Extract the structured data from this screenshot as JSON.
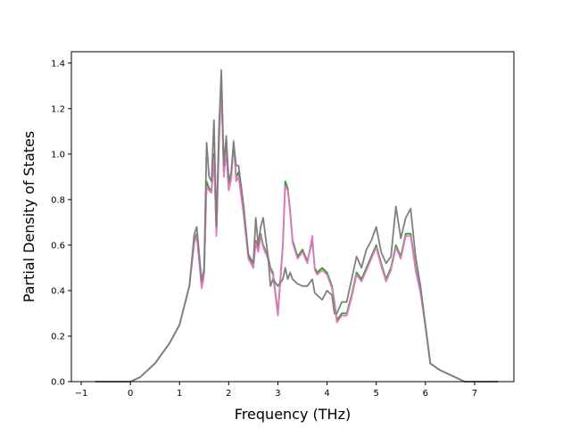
{
  "chart_data": {
    "type": "line",
    "title": "",
    "xlabel": "Frequency (THz)",
    "ylabel": "Partial Density of States",
    "xlim": [
      -1.2,
      7.8
    ],
    "ylim": [
      0.0,
      1.45
    ],
    "xticks": [
      -1,
      0,
      1,
      2,
      3,
      4,
      5,
      6,
      7
    ],
    "xtick_labels": [
      "−1",
      "0",
      "1",
      "2",
      "3",
      "4",
      "5",
      "6",
      "7"
    ],
    "yticks": [
      0.0,
      0.2,
      0.4,
      0.6,
      0.8,
      1.0,
      1.2,
      1.4
    ],
    "ytick_labels": [
      "0.0",
      "0.2",
      "0.4",
      "0.6",
      "0.8",
      "1.0",
      "1.2",
      "1.4"
    ],
    "grid": false,
    "legend": "none",
    "series": [
      {
        "color": "#2ca02c",
        "x": [
          -0.72,
          0.0,
          0.2,
          0.5,
          0.8,
          1.0,
          1.2,
          1.3,
          1.35,
          1.45,
          1.5,
          1.55,
          1.6,
          1.65,
          1.7,
          1.75,
          1.8,
          1.85,
          1.9,
          1.95,
          2.0,
          2.05,
          2.1,
          2.15,
          2.2,
          2.3,
          2.4,
          2.5,
          2.55,
          2.6,
          2.65,
          2.7,
          2.8,
          2.85,
          2.9,
          3.0,
          3.1,
          3.15,
          3.2,
          3.25,
          3.3,
          3.4,
          3.5,
          3.6,
          3.7,
          3.75,
          3.8,
          3.9,
          4.0,
          4.1,
          4.15,
          4.2,
          4.3,
          4.4,
          4.5,
          4.6,
          4.7,
          4.8,
          4.9,
          5.0,
          5.1,
          5.2,
          5.3,
          5.4,
          5.5,
          5.6,
          5.7,
          5.8,
          5.9,
          6.0,
          6.1,
          6.3,
          6.5,
          6.7,
          6.8,
          7.48
        ],
        "y": [
          0.0,
          0.0,
          0.02,
          0.08,
          0.17,
          0.25,
          0.42,
          0.62,
          0.65,
          0.42,
          0.48,
          0.88,
          0.85,
          0.84,
          1.0,
          0.65,
          1.05,
          1.32,
          0.92,
          1.03,
          0.85,
          0.9,
          1.05,
          0.9,
          0.92,
          0.75,
          0.55,
          0.5,
          0.62,
          0.58,
          0.65,
          0.6,
          0.55,
          0.5,
          0.48,
          0.3,
          0.6,
          0.88,
          0.85,
          0.75,
          0.62,
          0.55,
          0.58,
          0.53,
          0.62,
          0.5,
          0.48,
          0.5,
          0.48,
          0.42,
          0.35,
          0.27,
          0.3,
          0.3,
          0.38,
          0.48,
          0.45,
          0.5,
          0.55,
          0.6,
          0.52,
          0.45,
          0.5,
          0.6,
          0.55,
          0.65,
          0.65,
          0.5,
          0.4,
          0.25,
          0.08,
          0.05,
          0.03,
          0.01,
          0.0,
          0.0
        ]
      },
      {
        "color": "#e377c2",
        "x": [
          -0.72,
          0.0,
          0.2,
          0.5,
          0.8,
          1.0,
          1.2,
          1.3,
          1.35,
          1.45,
          1.5,
          1.55,
          1.6,
          1.65,
          1.7,
          1.75,
          1.8,
          1.85,
          1.9,
          1.95,
          2.0,
          2.05,
          2.1,
          2.15,
          2.2,
          2.3,
          2.4,
          2.5,
          2.55,
          2.6,
          2.65,
          2.7,
          2.8,
          2.85,
          2.9,
          3.0,
          3.1,
          3.15,
          3.2,
          3.25,
          3.3,
          3.4,
          3.5,
          3.6,
          3.7,
          3.75,
          3.8,
          3.9,
          4.0,
          4.1,
          4.15,
          4.2,
          4.3,
          4.4,
          4.5,
          4.6,
          4.7,
          4.8,
          4.9,
          5.0,
          5.1,
          5.2,
          5.3,
          5.4,
          5.5,
          5.6,
          5.7,
          5.8,
          5.9,
          6.0,
          6.1,
          6.3,
          6.5,
          6.7,
          6.8,
          7.48
        ],
        "y": [
          0.0,
          0.0,
          0.02,
          0.08,
          0.17,
          0.25,
          0.42,
          0.61,
          0.64,
          0.41,
          0.47,
          0.86,
          0.84,
          0.83,
          0.98,
          0.64,
          1.03,
          1.3,
          0.9,
          1.01,
          0.84,
          0.89,
          1.06,
          0.88,
          0.9,
          0.74,
          0.54,
          0.5,
          0.61,
          0.57,
          0.64,
          0.59,
          0.54,
          0.49,
          0.47,
          0.29,
          0.59,
          0.86,
          0.84,
          0.74,
          0.61,
          0.54,
          0.57,
          0.52,
          0.64,
          0.49,
          0.47,
          0.49,
          0.47,
          0.41,
          0.34,
          0.26,
          0.29,
          0.29,
          0.37,
          0.47,
          0.44,
          0.49,
          0.54,
          0.59,
          0.51,
          0.44,
          0.49,
          0.59,
          0.54,
          0.64,
          0.64,
          0.49,
          0.39,
          0.24,
          0.08,
          0.05,
          0.03,
          0.01,
          0.0,
          0.0
        ]
      },
      {
        "color": "#7f7f7f",
        "x": [
          -0.72,
          0.0,
          0.2,
          0.5,
          0.8,
          1.0,
          1.2,
          1.3,
          1.35,
          1.45,
          1.5,
          1.55,
          1.6,
          1.65,
          1.7,
          1.75,
          1.8,
          1.85,
          1.9,
          1.95,
          2.0,
          2.05,
          2.1,
          2.15,
          2.2,
          2.3,
          2.4,
          2.5,
          2.55,
          2.6,
          2.65,
          2.7,
          2.8,
          2.85,
          2.9,
          3.0,
          3.1,
          3.15,
          3.2,
          3.25,
          3.3,
          3.4,
          3.5,
          3.6,
          3.7,
          3.75,
          3.8,
          3.9,
          4.0,
          4.1,
          4.15,
          4.2,
          4.3,
          4.4,
          4.5,
          4.6,
          4.7,
          4.8,
          4.9,
          5.0,
          5.1,
          5.2,
          5.3,
          5.4,
          5.5,
          5.6,
          5.7,
          5.8,
          5.9,
          6.0,
          6.1,
          6.3,
          6.5,
          6.7,
          6.8,
          7.48
        ],
        "y": [
          0.0,
          0.0,
          0.02,
          0.08,
          0.17,
          0.25,
          0.42,
          0.65,
          0.68,
          0.44,
          0.5,
          1.05,
          0.9,
          0.88,
          1.15,
          0.68,
          1.1,
          1.37,
          0.95,
          1.08,
          0.88,
          0.92,
          1.05,
          0.95,
          0.95,
          0.78,
          0.56,
          0.52,
          0.72,
          0.6,
          0.68,
          0.72,
          0.55,
          0.42,
          0.45,
          0.42,
          0.45,
          0.5,
          0.45,
          0.48,
          0.45,
          0.43,
          0.42,
          0.42,
          0.45,
          0.39,
          0.38,
          0.36,
          0.4,
          0.38,
          0.3,
          0.3,
          0.35,
          0.35,
          0.45,
          0.55,
          0.5,
          0.58,
          0.62,
          0.68,
          0.57,
          0.52,
          0.55,
          0.77,
          0.63,
          0.72,
          0.76,
          0.55,
          0.42,
          0.25,
          0.08,
          0.05,
          0.03,
          0.01,
          0.0,
          0.0
        ]
      }
    ]
  }
}
